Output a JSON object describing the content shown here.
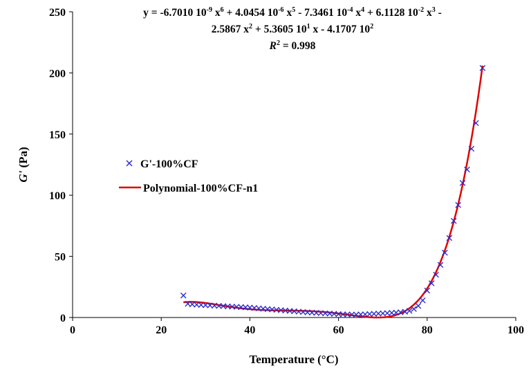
{
  "chart_data": {
    "type": "scatter",
    "xlabel": "Temperature (°C)",
    "ylabel_main": "G'",
    "ylabel_unit": " (Pa)",
    "xlim": [
      0,
      100
    ],
    "ylim": [
      0,
      250
    ],
    "x_ticks": [
      "0",
      "20",
      "40",
      "60",
      "80",
      "100"
    ],
    "y_ticks": [
      "0",
      "50",
      "100",
      "150",
      "200",
      "250"
    ],
    "grid": false,
    "legend_position": "left-middle",
    "equation": {
      "line1": {
        "a": "y = -6.7010 10",
        "a_exp": "-9",
        "b": " x",
        "b_exp": "6",
        "c": " + 4.0454 10",
        "c_exp": "-6",
        "d": " x",
        "d_exp": "5",
        "e": " - 7.3461 10",
        "e_exp": "-4",
        "f": " x",
        "f_exp": "4",
        "g": " + 6.1128 10",
        "g_exp": "-2",
        "h": " x",
        "h_exp": "3",
        "i": " -"
      },
      "line2": {
        "a": "2.5867 x",
        "a_exp": "2",
        "b": " + 5.3605 10",
        "b_exp": "1",
        "c": " x - 4.1707 10",
        "c_exp": "2"
      },
      "line3": {
        "r": "R",
        "r_exp": "2",
        "rest": " = 0.998"
      }
    },
    "coefficients": [
      -6.701e-09,
      4.0454e-06,
      -0.00073461,
      0.061128,
      -2.5867,
      53.605,
      -417.07
    ],
    "fit_range": [
      25,
      92.5
    ],
    "series": [
      {
        "name": "G'-100%CF",
        "kind": "scatter",
        "marker": "x",
        "color": "#2f2fcc",
        "x": [
          25.0,
          26.0,
          27.0,
          28.0,
          29.0,
          30.0,
          31.0,
          32.0,
          33.0,
          34.0,
          35.0,
          36.0,
          37.0,
          38.0,
          39.0,
          40.0,
          41.0,
          42.0,
          43.0,
          44.0,
          45.0,
          46.0,
          47.0,
          48.0,
          49.0,
          50.0,
          51.0,
          52.0,
          53.0,
          54.0,
          55.0,
          56.0,
          57.0,
          58.0,
          59.0,
          60.0,
          61.0,
          62.0,
          63.0,
          64.0,
          65.0,
          66.0,
          67.0,
          68.0,
          69.0,
          70.0,
          71.0,
          72.0,
          73.0,
          74.0,
          75.0,
          76.0,
          77.0,
          78.0,
          79.0,
          80.0,
          81.0,
          82.0,
          83.0,
          84.0,
          85.0,
          86.0,
          87.0,
          88.0,
          89.0,
          90.0,
          91.0,
          92.5
        ],
        "y": [
          18.0,
          11.2,
          10.8,
          10.5,
          10.3,
          10.1,
          9.9,
          9.7,
          9.5,
          9.3,
          9.1,
          8.9,
          8.7,
          8.5,
          8.3,
          8.1,
          7.8,
          7.5,
          7.2,
          6.9,
          6.6,
          6.3,
          6.0,
          5.7,
          5.4,
          5.1,
          4.8,
          4.5,
          4.2,
          4.0,
          3.8,
          3.6,
          3.4,
          3.2,
          3.0,
          2.8,
          2.6,
          2.5,
          2.4,
          2.4,
          2.5,
          2.6,
          2.8,
          3.0,
          3.2,
          3.4,
          3.6,
          3.8,
          4.0,
          4.3,
          4.7,
          5.5,
          7.0,
          9.5,
          14.0,
          22.0,
          28.0,
          35.0,
          43.0,
          53.0,
          65.0,
          79.0,
          92.0,
          110.0,
          121.0,
          138.0,
          159.0,
          204.0
        ]
      },
      {
        "name": "Polynomial-100%CF-n1",
        "kind": "line",
        "color": "#e00000"
      }
    ]
  }
}
